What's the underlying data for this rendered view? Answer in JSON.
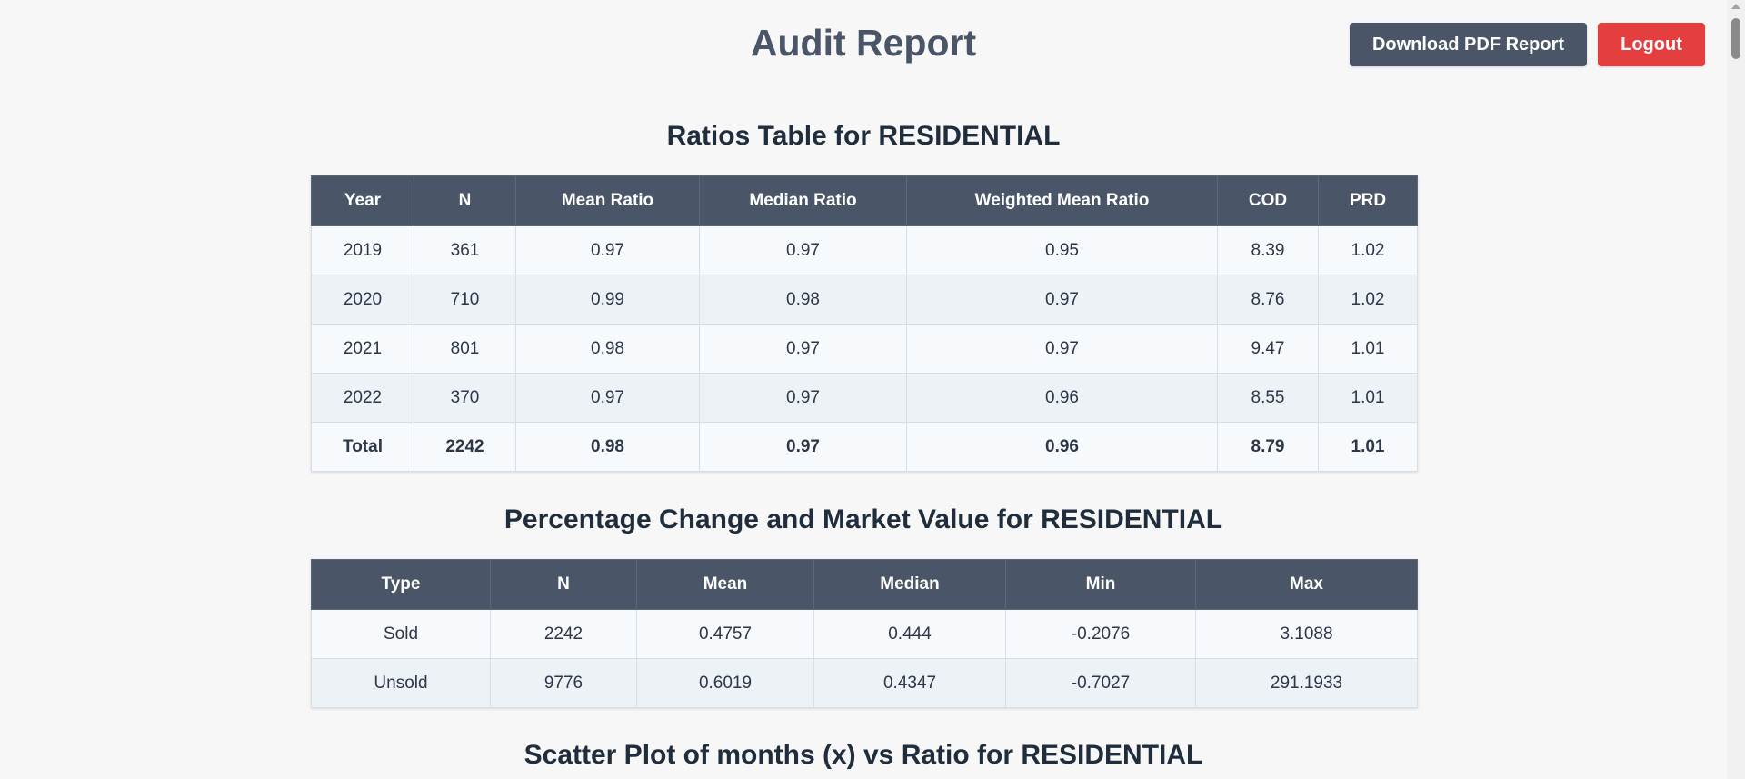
{
  "header": {
    "title": "Audit Report",
    "download_label": "Download PDF Report",
    "logout_label": "Logout"
  },
  "ratios": {
    "title": "Ratios Table for RESIDENTIAL",
    "columns": [
      "Year",
      "N",
      "Mean Ratio",
      "Median Ratio",
      "Weighted Mean Ratio",
      "COD",
      "PRD"
    ],
    "rows": [
      [
        "2019",
        "361",
        "0.97",
        "0.97",
        "0.95",
        "8.39",
        "1.02"
      ],
      [
        "2020",
        "710",
        "0.99",
        "0.98",
        "0.97",
        "8.76",
        "1.02"
      ],
      [
        "2021",
        "801",
        "0.98",
        "0.97",
        "0.97",
        "9.47",
        "1.01"
      ],
      [
        "2022",
        "370",
        "0.97",
        "0.97",
        "0.96",
        "8.55",
        "1.01"
      ],
      [
        "Total",
        "2242",
        "0.98",
        "0.97",
        "0.96",
        "8.79",
        "1.01"
      ]
    ]
  },
  "percentage": {
    "title": "Percentage Change and Market Value for RESIDENTIAL",
    "columns": [
      "Type",
      "N",
      "Mean",
      "Median",
      "Min",
      "Max"
    ],
    "rows": [
      [
        "Sold",
        "2242",
        "0.4757",
        "0.444",
        "-0.2076",
        "3.1088"
      ],
      [
        "Unsold",
        "9776",
        "0.6019",
        "0.4347",
        "-0.7027",
        "291.1933"
      ]
    ]
  },
  "scatter": {
    "title": "Scatter Plot of months (x) vs Ratio for RESIDENTIAL"
  }
}
